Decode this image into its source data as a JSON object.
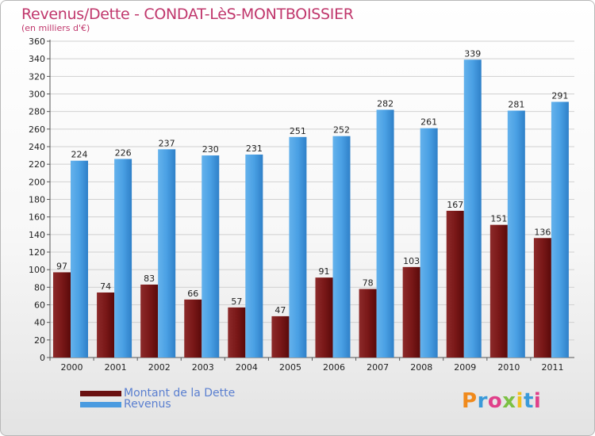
{
  "title": "Revenus/Dette - CONDAT-LèS-MONTBOISSIER",
  "subtitle": "(en milliers d'€)",
  "logo_text": "Proxiti",
  "chart_data": {
    "type": "bar",
    "categories": [
      "2000",
      "2001",
      "2002",
      "2003",
      "2004",
      "2005",
      "2006",
      "2007",
      "2008",
      "2009",
      "2010",
      "2011"
    ],
    "series": [
      {
        "name": "Montant de la Dette",
        "color": "#7a1a1a",
        "values": [
          97,
          74,
          83,
          66,
          57,
          47,
          91,
          78,
          103,
          167,
          151,
          136
        ]
      },
      {
        "name": "Revenus",
        "color": "#4a9be0",
        "values": [
          224,
          226,
          237,
          230,
          231,
          251,
          252,
          282,
          261,
          339,
          281,
          291
        ]
      }
    ],
    "ylim": [
      0,
      360
    ],
    "ytick_step": 20,
    "grid": true,
    "legend_position": "bottom-left"
  }
}
